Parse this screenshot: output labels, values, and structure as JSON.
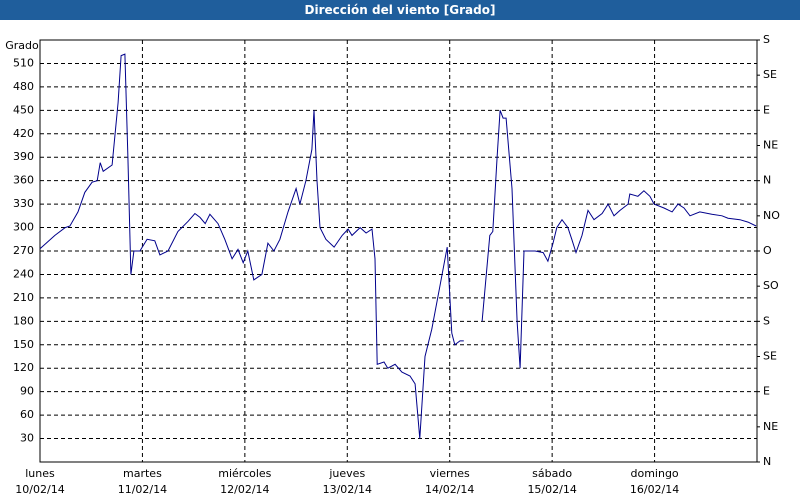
{
  "chart_data": {
    "type": "line",
    "title": "Dirección del viento [Grado]",
    "y_label": "Grado",
    "xlim": [
      0,
      168
    ],
    "xticks": [
      {
        "value": 0,
        "label": "lunes",
        "date": "10/02/14"
      },
      {
        "value": 24,
        "label": "martes",
        "date": "11/02/14"
      },
      {
        "value": 48,
        "label": "miércoles",
        "date": "12/02/14"
      },
      {
        "value": 72,
        "label": "jueves",
        "date": "13/02/14"
      },
      {
        "value": 96,
        "label": "viernes",
        "date": "14/02/14"
      },
      {
        "value": 120,
        "label": "sábado",
        "date": "15/02/14"
      },
      {
        "value": 144,
        "label": "domingo",
        "date": "16/02/14"
      }
    ],
    "ylim": [
      0,
      540
    ],
    "yticks": [
      30,
      60,
      90,
      120,
      150,
      180,
      210,
      240,
      270,
      300,
      330,
      360,
      390,
      420,
      450,
      480,
      510
    ],
    "y2lim": [
      0,
      540
    ],
    "y2ticks": [
      {
        "value": 0,
        "label": "N"
      },
      {
        "value": 45,
        "label": "NE"
      },
      {
        "value": 90,
        "label": "E"
      },
      {
        "value": 135,
        "label": "SE"
      },
      {
        "value": 180,
        "label": "S"
      },
      {
        "value": 225,
        "label": "SO"
      },
      {
        "value": 270,
        "label": "O"
      },
      {
        "value": 315,
        "label": "NO"
      },
      {
        "value": 360,
        "label": "N"
      },
      {
        "value": 405,
        "label": "NE"
      },
      {
        "value": 450,
        "label": "E"
      },
      {
        "value": 495,
        "label": "SE"
      },
      {
        "value": 540,
        "label": "S"
      }
    ],
    "grid": true,
    "x": [
      0,
      3.5,
      5.9,
      7.0,
      8.9,
      10.5,
      12.2,
      13.4,
      14.1,
      14.8,
      16.9,
      18.3,
      19.0,
      19.9,
      20.6,
      21.3,
      22.0,
      23.4,
      25.1,
      26.9,
      28.1,
      30.0,
      32.3,
      34.7,
      36.3,
      37.5,
      38.7,
      39.8,
      41.7,
      43.3,
      45.0,
      46.4,
      47.6,
      48.7,
      50.1,
      52.0,
      53.4,
      54.8,
      56.2,
      58.1,
      60.0,
      60.9,
      62.3,
      63.7,
      64.2,
      64.9,
      65.6,
      67.0,
      68.9,
      70.8,
      72.2,
      73.1,
      75.0,
      76.4,
      77.8,
      78.5,
      79.0,
      80.6,
      81.5,
      83.2,
      84.8,
      86.7,
      87.9,
      89.0,
      90.2,
      91.8,
      93.7,
      95.4,
      96.5,
      97.2,
      98.4,
      99.3,
      101,
      103.6,
      105.4,
      106.1,
      107.1,
      107.8,
      108.5,
      109.2,
      110.6,
      111.8,
      112.5,
      113.4,
      116.0,
      117.9,
      119.0,
      120.2,
      121.1,
      122.3,
      123.7,
      124.6,
      125.6,
      127.0,
      128.4,
      129.8,
      131.7,
      133.1,
      134.5,
      135.9,
      137.8,
      138.2,
      140.1,
      141.5,
      142.9,
      143.9,
      146.2,
      148.1,
      149.5,
      150.9,
      152.3,
      154.6,
      157.4,
      159.8,
      161.2,
      164.0,
      165.9,
      167.8
    ],
    "series": [
      {
        "color": "#00008b",
        "values": [
          273,
          290,
          300,
          302,
          320,
          345,
          358,
          360,
          383,
          372,
          380,
          460,
          520,
          522,
          390,
          240,
          270,
          270,
          285,
          283,
          265,
          270,
          295,
          308,
          318,
          313,
          305,
          317,
          305,
          285,
          260,
          272,
          255,
          270,
          233,
          240,
          280,
          270,
          285,
          320,
          350,
          330,
          360,
          400,
          450,
          360,
          300,
          285,
          275,
          290,
          298,
          290,
          300,
          293,
          298,
          260,
          125,
          128,
          120,
          125,
          115,
          110,
          100,
          30,
          135,
          170,
          225,
          275,
          165,
          150,
          155,
          155,
          null,
          180,
          290,
          295,
          390,
          450,
          440,
          440,
          350,
          180,
          120,
          270,
          270,
          268,
          257,
          280,
          300,
          310,
          300,
          285,
          268,
          290,
          322,
          310,
          318,
          330,
          315,
          322,
          330,
          343,
          340,
          347,
          340,
          330,
          325,
          320,
          330,
          325,
          315,
          320,
          317,
          315,
          312,
          310,
          307,
          302
        ]
      }
    ]
  }
}
